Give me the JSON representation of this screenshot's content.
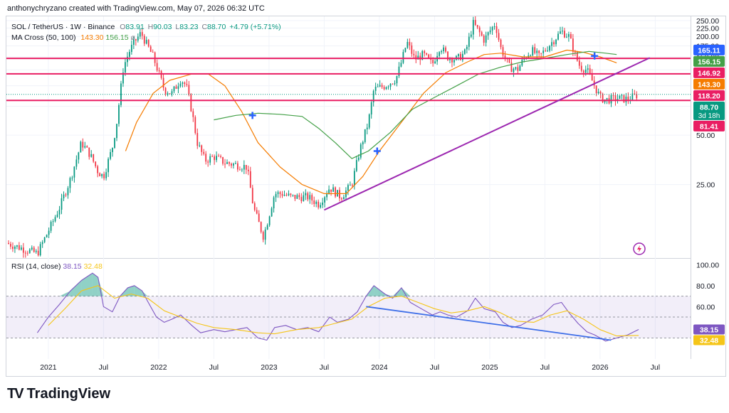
{
  "header": {
    "text": "anthonychryzano created with TradingView.com, May 07, 2026 06:32 UTC"
  },
  "legend": {
    "symbol": "SOL / TetherUS · 1W · Binance",
    "o_label": "O",
    "o": "83.91",
    "h_label": "H",
    "h": "90.03",
    "l_label": "L",
    "l": "83.23",
    "c_label": "C",
    "c": "88.70",
    "change": "+4.79 (+5.71%)",
    "ma_label": "MA Cross (50, 100)",
    "ma50": "143.30",
    "ma100": "156.15",
    "ma_extra": "ø"
  },
  "rsi_legend": {
    "label": "RSI (14, close)",
    "rsi": "38.15",
    "signal": "32.48"
  },
  "footer": {
    "brand": "TradingView"
  },
  "colors": {
    "up": "#089981",
    "down": "#f23645",
    "ma50": "#f57c00",
    "ma100": "#43a047",
    "level": "#e91e63",
    "trend": "#9c27b0",
    "rsi": "#7e57c2",
    "rsi_signal": "#f5c518",
    "rsi_trend": "#3d6ee8",
    "cross_marker": "#2962ff"
  },
  "chart_data": [
    {
      "type": "candlestick",
      "title": "SOL / TetherUS · 1W · Binance",
      "y_scale": "log",
      "ylim": [
        9,
        265
      ],
      "y_ticks": [
        250,
        225,
        200,
        175,
        150,
        125,
        100,
        75,
        50,
        25
      ],
      "y_tick_labels": [
        "250.00",
        "225.00",
        "200.00",
        "175.00",
        "150.00",
        "125.00",
        "100.00",
        "75.00",
        "50.00",
        "25.00"
      ],
      "x_ticks": [
        "2021",
        "Jul",
        "2022",
        "Jul",
        "2023",
        "Jul",
        "2024",
        "Jul",
        "2025",
        "Jul",
        "2026",
        "Jul"
      ],
      "x_tick_positions": [
        2021.0,
        2021.5,
        2022.0,
        2022.5,
        2023.0,
        2023.5,
        2024.0,
        2024.5,
        2025.0,
        2025.5,
        2026.0,
        2026.5
      ],
      "xlim": [
        2020.62,
        2026.82
      ],
      "price_path": [
        [
          2020.62,
          11
        ],
        [
          2020.9,
          9.5
        ],
        [
          2021.0,
          13
        ],
        [
          2021.1,
          18
        ],
        [
          2021.2,
          27
        ],
        [
          2021.3,
          45
        ],
        [
          2021.38,
          38
        ],
        [
          2021.45,
          30
        ],
        [
          2021.5,
          28
        ],
        [
          2021.58,
          42
        ],
        [
          2021.62,
          60
        ],
        [
          2021.68,
          130
        ],
        [
          2021.73,
          160
        ],
        [
          2021.78,
          185
        ],
        [
          2021.84,
          210
        ],
        [
          2021.88,
          185
        ],
        [
          2021.95,
          150
        ],
        [
          2022.0,
          120
        ],
        [
          2022.05,
          95
        ],
        [
          2022.12,
          90
        ],
        [
          2022.2,
          110
        ],
        [
          2022.25,
          100
        ],
        [
          2022.3,
          70
        ],
        [
          2022.35,
          45
        ],
        [
          2022.42,
          35
        ],
        [
          2022.5,
          37
        ],
        [
          2022.6,
          34
        ],
        [
          2022.7,
          33
        ],
        [
          2022.8,
          32
        ],
        [
          2022.86,
          18
        ],
        [
          2022.95,
          12
        ],
        [
          2023.05,
          22
        ],
        [
          2023.12,
          22
        ],
        [
          2023.2,
          21
        ],
        [
          2023.35,
          21
        ],
        [
          2023.45,
          19
        ],
        [
          2023.55,
          24
        ],
        [
          2023.65,
          21
        ],
        [
          2023.75,
          25
        ],
        [
          2023.82,
          40
        ],
        [
          2023.9,
          60
        ],
        [
          2023.95,
          95
        ],
        [
          2024.05,
          100
        ],
        [
          2024.15,
          110
        ],
        [
          2024.2,
          140
        ],
        [
          2024.25,
          185
        ],
        [
          2024.32,
          145
        ],
        [
          2024.4,
          155
        ],
        [
          2024.48,
          135
        ],
        [
          2024.55,
          175
        ],
        [
          2024.62,
          150
        ],
        [
          2024.7,
          145
        ],
        [
          2024.78,
          160
        ],
        [
          2024.85,
          240
        ],
        [
          2024.88,
          225
        ],
        [
          2024.95,
          190
        ],
        [
          2025.0,
          215
        ],
        [
          2025.05,
          240
        ],
        [
          2025.1,
          170
        ],
        [
          2025.18,
          130
        ],
        [
          2025.25,
          125
        ],
        [
          2025.32,
          150
        ],
        [
          2025.38,
          165
        ],
        [
          2025.45,
          150
        ],
        [
          2025.5,
          165
        ],
        [
          2025.58,
          190
        ],
        [
          2025.65,
          215
        ],
        [
          2025.72,
          200
        ],
        [
          2025.78,
          150
        ],
        [
          2025.82,
          130
        ],
        [
          2025.88,
          125
        ],
        [
          2025.95,
          100
        ],
        [
          2026.0,
          85
        ],
        [
          2026.05,
          82
        ],
        [
          2026.15,
          84
        ],
        [
          2026.25,
          83
        ],
        [
          2026.35,
          88.7
        ]
      ],
      "series": [
        {
          "name": "MA 50",
          "color": "#f57c00",
          "points": [
            [
              2021.7,
              40
            ],
            [
              2021.8,
              60
            ],
            [
              2021.95,
              90
            ],
            [
              2022.1,
              108
            ],
            [
              2022.3,
              118
            ],
            [
              2022.45,
              118
            ],
            [
              2022.6,
              100
            ],
            [
              2022.75,
              70
            ],
            [
              2022.9,
              45
            ],
            [
              2023.1,
              32
            ],
            [
              2023.3,
              25
            ],
            [
              2023.5,
              22
            ],
            [
              2023.7,
              22
            ],
            [
              2023.85,
              28
            ],
            [
              2024.0,
              40
            ],
            [
              2024.2,
              60
            ],
            [
              2024.4,
              90
            ],
            [
              2024.6,
              120
            ],
            [
              2024.8,
              140
            ],
            [
              2024.95,
              155
            ],
            [
              2025.1,
              158
            ],
            [
              2025.3,
              150
            ],
            [
              2025.5,
              150
            ],
            [
              2025.7,
              165
            ],
            [
              2025.85,
              160
            ],
            [
              2026.0,
              150
            ],
            [
              2026.15,
              138
            ]
          ]
        },
        {
          "name": "MA 100",
          "color": "#43a047",
          "points": [
            [
              2022.5,
              62
            ],
            [
              2022.7,
              66
            ],
            [
              2022.9,
              68
            ],
            [
              2023.1,
              67
            ],
            [
              2023.3,
              65
            ],
            [
              2023.45,
              55
            ],
            [
              2023.6,
              45
            ],
            [
              2023.75,
              36
            ],
            [
              2023.9,
              40
            ],
            [
              2024.1,
              52
            ],
            [
              2024.3,
              72
            ],
            [
              2024.5,
              85
            ],
            [
              2024.7,
              100
            ],
            [
              2024.9,
              118
            ],
            [
              2025.1,
              130
            ],
            [
              2025.3,
              140
            ],
            [
              2025.5,
              147
            ],
            [
              2025.7,
              155
            ],
            [
              2025.9,
              162
            ],
            [
              2026.05,
              158
            ],
            [
              2026.15,
              155
            ]
          ]
        }
      ],
      "horizontal_levels": [
        {
          "value": 146.92,
          "label": "146.92"
        },
        {
          "value": 118.2,
          "label": "118.20"
        },
        {
          "value": 81.41,
          "label": "81.41"
        }
      ],
      "trendline": {
        "from": [
          2023.5,
          17.5
        ],
        "to": [
          2026.45,
          148
        ]
      },
      "cross_markers": [
        [
          2022.85,
          66
        ],
        [
          2023.98,
          40
        ],
        [
          2025.95,
          152
        ]
      ],
      "price_labels": [
        {
          "value": 165.11,
          "label": "165.11",
          "color": "#2962ff"
        },
        {
          "value": 156.15,
          "label": "156.15",
          "color": "#43a047"
        },
        {
          "value": 146.92,
          "label": "146.92",
          "color": "#e91e63"
        },
        {
          "value": 143.3,
          "label": "143.30",
          "color": "#f57c00"
        },
        {
          "value": 118.2,
          "label": "118.20",
          "color": "#e91e63"
        },
        {
          "value": 88.7,
          "label": "88.70",
          "sub": "3d 18h",
          "color": "#089981"
        },
        {
          "value": 81.41,
          "label": "81.41",
          "color": "#e91e63"
        }
      ]
    },
    {
      "type": "line",
      "title": "RSI (14, close)",
      "ylim": [
        10,
        105
      ],
      "y_ticks": [
        100,
        80,
        60
      ],
      "y_tick_labels": [
        "100.00",
        "80.00",
        "60.00"
      ],
      "band": [
        30,
        70
      ],
      "series": [
        {
          "name": "RSI",
          "color": "#7e57c2",
          "points": [
            [
              2020.9,
              35
            ],
            [
              2021.0,
              50
            ],
            [
              2021.1,
              62
            ],
            [
              2021.2,
              75
            ],
            [
              2021.3,
              85
            ],
            [
              2021.4,
              92
            ],
            [
              2021.45,
              88
            ],
            [
              2021.5,
              60
            ],
            [
              2021.58,
              55
            ],
            [
              2021.65,
              70
            ],
            [
              2021.72,
              78
            ],
            [
              2021.78,
              80
            ],
            [
              2021.85,
              75
            ],
            [
              2021.9,
              65
            ],
            [
              2021.98,
              50
            ],
            [
              2022.05,
              45
            ],
            [
              2022.12,
              48
            ],
            [
              2022.2,
              52
            ],
            [
              2022.3,
              42
            ],
            [
              2022.38,
              35
            ],
            [
              2022.5,
              38
            ],
            [
              2022.6,
              36
            ],
            [
              2022.7,
              38
            ],
            [
              2022.8,
              40
            ],
            [
              2022.9,
              30
            ],
            [
              2022.98,
              28
            ],
            [
              2023.05,
              40
            ],
            [
              2023.15,
              42
            ],
            [
              2023.25,
              38
            ],
            [
              2023.35,
              40
            ],
            [
              2023.45,
              36
            ],
            [
              2023.55,
              50
            ],
            [
              2023.62,
              45
            ],
            [
              2023.72,
              48
            ],
            [
              2023.8,
              55
            ],
            [
              2023.88,
              70
            ],
            [
              2023.95,
              80
            ],
            [
              2024.05,
              72
            ],
            [
              2024.12,
              68
            ],
            [
              2024.2,
              78
            ],
            [
              2024.28,
              64
            ],
            [
              2024.38,
              58
            ],
            [
              2024.48,
              52
            ],
            [
              2024.55,
              55
            ],
            [
              2024.62,
              52
            ],
            [
              2024.7,
              50
            ],
            [
              2024.8,
              56
            ],
            [
              2024.87,
              68
            ],
            [
              2024.95,
              58
            ],
            [
              2025.05,
              55
            ],
            [
              2025.12,
              45
            ],
            [
              2025.2,
              40
            ],
            [
              2025.28,
              42
            ],
            [
              2025.38,
              48
            ],
            [
              2025.48,
              52
            ],
            [
              2025.58,
              62
            ],
            [
              2025.65,
              64
            ],
            [
              2025.72,
              54
            ],
            [
              2025.8,
              44
            ],
            [
              2025.88,
              36
            ],
            [
              2025.95,
              33
            ],
            [
              2026.05,
              27
            ],
            [
              2026.15,
              30
            ],
            [
              2026.25,
              33
            ],
            [
              2026.35,
              38.15
            ]
          ]
        },
        {
          "name": "RSI-based MA",
          "color": "#f5c518",
          "points": [
            [
              2021.0,
              42
            ],
            [
              2021.15,
              58
            ],
            [
              2021.3,
              75
            ],
            [
              2021.45,
              80
            ],
            [
              2021.6,
              68
            ],
            [
              2021.75,
              72
            ],
            [
              2021.9,
              68
            ],
            [
              2022.05,
              56
            ],
            [
              2022.2,
              50
            ],
            [
              2022.35,
              44
            ],
            [
              2022.5,
              40
            ],
            [
              2022.7,
              38
            ],
            [
              2022.9,
              35
            ],
            [
              2023.05,
              34
            ],
            [
              2023.25,
              38
            ],
            [
              2023.45,
              40
            ],
            [
              2023.6,
              44
            ],
            [
              2023.75,
              48
            ],
            [
              2023.9,
              60
            ],
            [
              2024.05,
              68
            ],
            [
              2024.2,
              70
            ],
            [
              2024.35,
              64
            ],
            [
              2024.5,
              58
            ],
            [
              2024.65,
              54
            ],
            [
              2024.8,
              56
            ],
            [
              2024.95,
              60
            ],
            [
              2025.1,
              54
            ],
            [
              2025.25,
              46
            ],
            [
              2025.4,
              45
            ],
            [
              2025.55,
              52
            ],
            [
              2025.7,
              56
            ],
            [
              2025.85,
              48
            ],
            [
              2026.0,
              38
            ],
            [
              2026.15,
              32
            ],
            [
              2026.35,
              32.48
            ]
          ]
        }
      ],
      "trendline": {
        "from": [
          2023.88,
          60
        ],
        "to": [
          2026.1,
          28
        ]
      },
      "price_labels": [
        {
          "value": 38.15,
          "label": "38.15",
          "color": "#7e57c2"
        },
        {
          "value": 32.48,
          "label": "32.48",
          "color": "#f5c518"
        }
      ]
    }
  ]
}
